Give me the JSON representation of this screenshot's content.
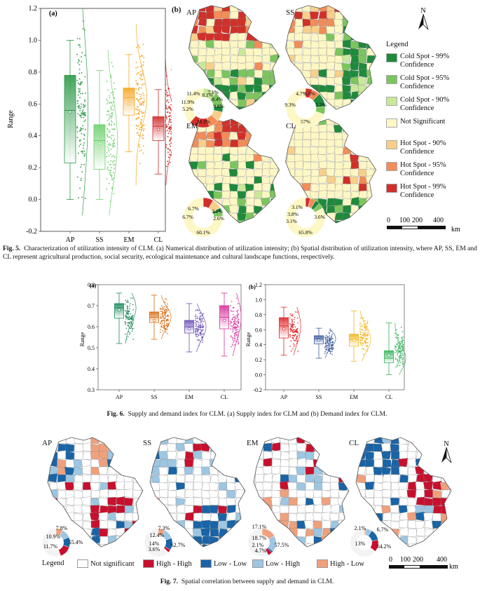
{
  "fig5": {
    "panel_a_label": "(a)",
    "panel_b_label": "(b)",
    "ylabel": "Range",
    "yticks": [
      "1.2",
      "1.0",
      "0.8",
      "0.6",
      "0.4",
      "0.2",
      "0.0",
      "-0.2"
    ],
    "categories": [
      "AP",
      "SS",
      "EM",
      "CL"
    ],
    "map_titles": [
      "AP",
      "SS",
      "EM",
      "CL"
    ],
    "pies": [
      {
        "labels": [
          "11.4%",
          "11.9%",
          "5.2%",
          "8.1%",
          "8.4%",
          "9.8%",
          "7.1%",
          "38.3%"
        ]
      },
      {
        "labels": [
          "4.7%",
          "5.5%",
          "9.3%",
          "5.2%",
          "57%"
        ]
      },
      {
        "labels": [
          "6.7%",
          "6.7%",
          "2.6%",
          "3.1%",
          "60.1%"
        ]
      },
      {
        "labels": [
          "3.1%",
          "3.8%",
          "3.1%",
          "3.6%",
          "65.8%"
        ]
      }
    ],
    "legend_title": "Legend",
    "legend_items": [
      {
        "label": "Cold Spot - 99% Confidence",
        "color": "#1f8a3c"
      },
      {
        "label": "Cold Spot - 95% Confidence",
        "color": "#7cc55e"
      },
      {
        "label": "Cold Spot - 90% Confidence",
        "color": "#c9e89a"
      },
      {
        "label": "Not Significant",
        "color": "#fdf7c5"
      },
      {
        "label": "Hot Spot - 90% Confidence",
        "color": "#f7cf8b"
      },
      {
        "label": "Hot Spot - 95% Confidence",
        "color": "#f28c58"
      },
      {
        "label": "Hot Spot - 99% Confidence",
        "color": "#d0302a"
      }
    ],
    "scale": {
      "ticks": [
        "0",
        "100",
        "200",
        "400"
      ],
      "unit": "km"
    },
    "north": "N",
    "caption_label": "Fig. 5.",
    "caption_text": "Characterization of utilization intensity of CLM. (a) Numerical distribution of utilization intensity; (b) Spatial distribution of utilization intensity, where AP, SS, EM and CL represent agricultural production, social security, ecological maintenance and cultural landscape functions, respectively."
  },
  "fig6": {
    "panel_a_label": "(a)",
    "panel_b_label": "(b)",
    "ylabel": "Range",
    "a_yticks": [
      "0.8",
      "0.7",
      "0.6",
      "0.5",
      "0.4",
      "0.3"
    ],
    "b_yticks": [
      "1.2",
      "1.0",
      "0.8",
      "0.6",
      "0.4",
      "0.2",
      "0.0",
      "-0.2"
    ],
    "categories": [
      "AP",
      "SS",
      "EM",
      "CL"
    ],
    "caption_label": "Fig. 6.",
    "caption_text": "Supply and demand index for CLM. (a) Supply index for CLM and (b) Demand index for CLM."
  },
  "fig7": {
    "map_titles": [
      "AP",
      "SS",
      "EM",
      "CL"
    ],
    "pies": [
      {
        "labels": [
          "7.8%",
          "10.9%",
          "11.7%",
          "55.4%"
        ]
      },
      {
        "labels": [
          "7.3%",
          "12.4%",
          "14%",
          "3.6%",
          "62.7%"
        ]
      },
      {
        "labels": [
          "17.1%",
          "18.7%",
          "2.1%",
          "4.7%",
          "57.5%"
        ]
      },
      {
        "labels": [
          "2.1%",
          "6.7%",
          "13%",
          "64.2%"
        ]
      }
    ],
    "legend_title": "Legend",
    "legend_items": [
      {
        "label": "Not significant",
        "color": "#ffffff"
      },
      {
        "label": "High - High",
        "color": "#c8102e"
      },
      {
        "label": "Low - Low",
        "color": "#1a64a6"
      },
      {
        "label": "Low - High",
        "color": "#9dc6e2"
      },
      {
        "label": "High - Low",
        "color": "#efa07c"
      }
    ],
    "scale": {
      "ticks": [
        "0",
        "100",
        "200",
        "400"
      ],
      "unit": "km"
    },
    "north": "N",
    "caption_label": "Fig. 7.",
    "caption_text": "Spatial correlation between supply and demand in CLM."
  },
  "chart_data": [
    {
      "type": "box",
      "title": "Fig. 5(a) Numerical distribution of utilization intensity",
      "xlabel": "",
      "ylabel": "Range",
      "ylim": [
        -0.2,
        1.2
      ],
      "categories": [
        "AP",
        "SS",
        "EM",
        "CL"
      ],
      "colors": [
        "#2e9a49",
        "#6fd06f",
        "#f5a623",
        "#d12a2a"
      ],
      "q1": [
        0.23,
        0.19,
        0.53,
        0.37
      ],
      "median": [
        0.56,
        0.37,
        0.64,
        0.46
      ],
      "q3": [
        0.78,
        0.47,
        0.7,
        0.52
      ],
      "whisker_low": [
        0.0,
        0.0,
        0.3,
        0.16
      ],
      "whisker_high": [
        1.0,
        0.81,
        0.91,
        0.69
      ],
      "mean": [
        0.55,
        0.35,
        0.6,
        0.44
      ],
      "point_range_high": [
        1.2,
        0.94,
        1.1,
        0.88
      ],
      "point_range_low": [
        -0.1,
        -0.1,
        0.09,
        0.09
      ]
    },
    {
      "type": "box",
      "title": "Fig. 6(a) Supply index for CLM",
      "ylabel": "Range",
      "ylim": [
        0.3,
        0.8
      ],
      "categories": [
        "AP",
        "SS",
        "EM",
        "CL"
      ],
      "colors": [
        "#1e8a5c",
        "#d86a12",
        "#6a4fb3",
        "#d6309a"
      ],
      "q1": [
        0.64,
        0.62,
        0.57,
        0.59
      ],
      "median": [
        0.69,
        0.645,
        0.6,
        0.645
      ],
      "q3": [
        0.71,
        0.67,
        0.63,
        0.7
      ],
      "whisker_low": [
        0.52,
        0.54,
        0.48,
        0.46
      ],
      "whisker_high": [
        0.76,
        0.75,
        0.71,
        0.76
      ],
      "mean": [
        0.68,
        0.63,
        0.59,
        0.63
      ]
    },
    {
      "type": "box",
      "title": "Fig. 6(b) Demand index for CLM",
      "ylabel": "Range",
      "ylim": [
        -0.2,
        1.2
      ],
      "categories": [
        "AP",
        "SS",
        "EM",
        "CL"
      ],
      "colors": [
        "#e0262a",
        "#3f5e9c",
        "#f2b51e",
        "#34b35a"
      ],
      "q1": [
        0.49,
        0.41,
        0.38,
        0.16
      ],
      "median": [
        0.65,
        0.48,
        0.47,
        0.22
      ],
      "q3": [
        0.76,
        0.52,
        0.54,
        0.32
      ],
      "whisker_low": [
        0.26,
        0.22,
        0.18,
        0.0
      ],
      "whisker_high": [
        0.9,
        0.62,
        0.85,
        0.69
      ],
      "mean": [
        0.61,
        0.46,
        0.46,
        0.26
      ]
    },
    {
      "type": "pie",
      "title": "Fig. 5(b) AP map share",
      "values": [
        11.4,
        11.9,
        5.2,
        8.1,
        8.4,
        9.8,
        7.1,
        38.3
      ]
    }
  ]
}
